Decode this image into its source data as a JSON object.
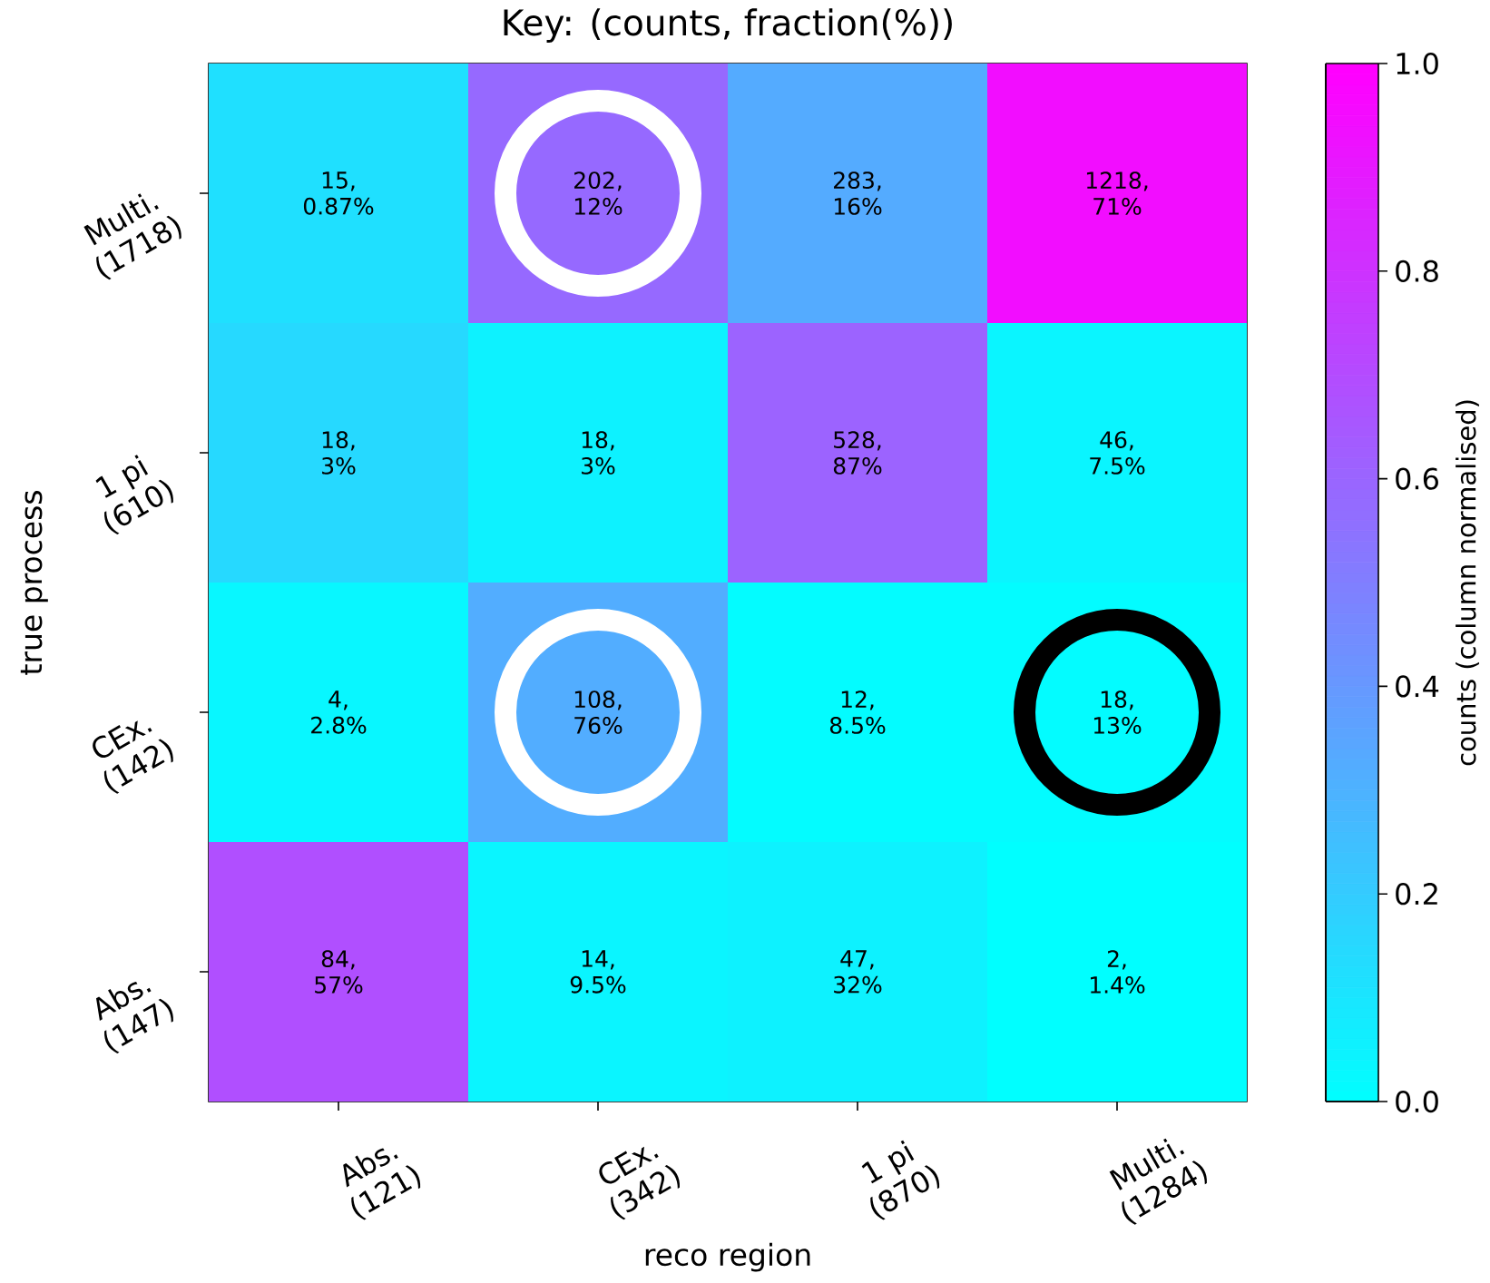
{
  "chart_data": {
    "type": "heatmap",
    "title": "Key: (counts, fraction(%))",
    "xlabel": "reco region",
    "ylabel": "true process",
    "clabel": "counts (column normalised)",
    "categories": [
      "Abs. (121)",
      "CEx. (342)",
      "1 pi (870)",
      "Multi. (1284)"
    ],
    "y_categories": [
      "Multi. (1718)",
      "1 pi (610)",
      "CEx. (142)",
      "Abs. (147)"
    ],
    "cells": [
      [
        0.12,
        0.59,
        0.33,
        0.95
      ],
      [
        0.15,
        0.05,
        0.61,
        0.04
      ],
      [
        0.03,
        0.32,
        0.01,
        0.01
      ],
      [
        0.69,
        0.04,
        0.05,
        0.0
      ]
    ],
    "cell_labels": [
      [
        "15, 0.87%",
        "202, 12%",
        "283, 16%",
        "1218, 71%"
      ],
      [
        "18, 3%",
        "18, 3%",
        "528, 87%",
        "46, 7.5%"
      ],
      [
        "4, 2.8%",
        "108, 76%",
        "12, 8.5%",
        "18, 13%"
      ],
      [
        "84, 57%",
        "14, 9.5%",
        "47, 32%",
        "2, 1.4%"
      ]
    ],
    "clim": [
      0,
      1
    ],
    "cticks": [
      {
        "value": 0,
        "label": "0.0"
      },
      {
        "value": 0.2,
        "label": "0.2"
      },
      {
        "value": 0.4,
        "label": "0.4"
      },
      {
        "value": 0.6,
        "label": "0.6"
      },
      {
        "value": 0.8,
        "label": "0.8"
      },
      {
        "value": 1,
        "label": "1.0"
      }
    ]
  }
}
